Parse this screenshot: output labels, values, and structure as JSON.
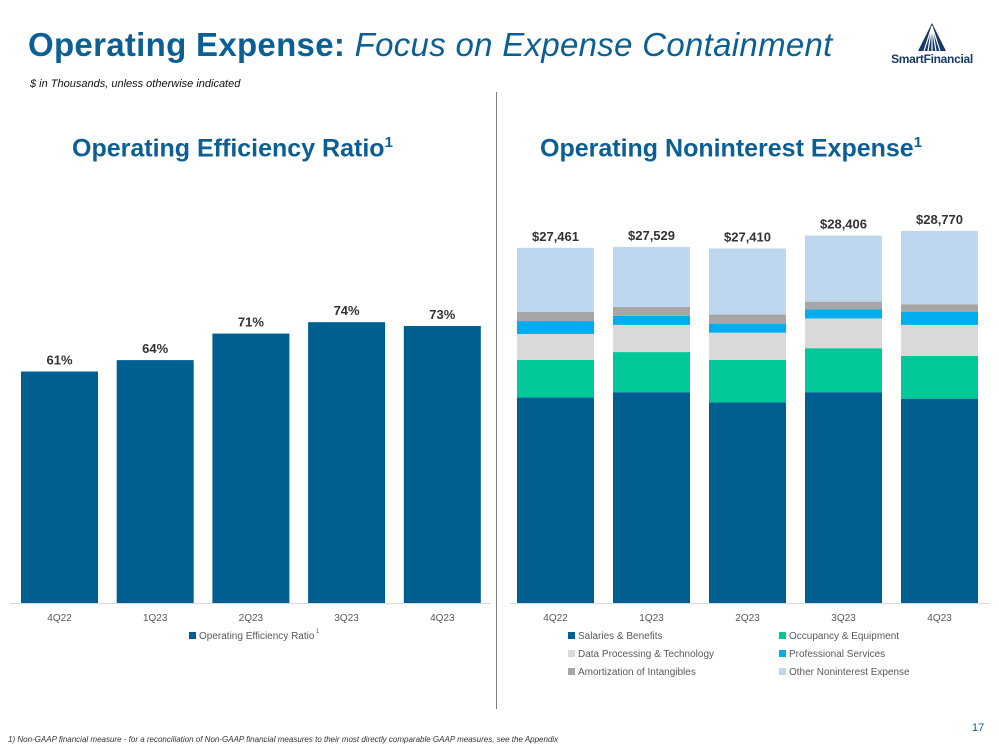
{
  "header": {
    "title_main": "Operating Expense:",
    "title_sub": "Focus on Expense Containment",
    "subtitle": "$ in Thousands, unless otherwise indicated",
    "logo_text": "SmartFinancial"
  },
  "left_panel": {
    "title": "Operating Efficiency Ratio",
    "title_sup": "1"
  },
  "right_panel": {
    "title": "Operating Noninterest Expense",
    "title_sup": "1"
  },
  "footer": {
    "footnote": "1) Non-GAAP financial measure - for a reconciliation of Non-GAAP financial measures to their most directly comparable GAAP measures, see the Appendix",
    "page_number": "17"
  },
  "colors": {
    "brand_blue": "#0b5f94",
    "salaries": "#005f91",
    "occupancy": "#00c896",
    "data_processing": "#d9d9d9",
    "professional": "#00aeef",
    "amortization": "#a6a6a6",
    "other": "#bdd7ee"
  },
  "chart_data": [
    {
      "type": "bar",
      "title": "Operating Efficiency Ratio",
      "categories": [
        "4Q22",
        "1Q23",
        "2Q23",
        "3Q23",
        "4Q23"
      ],
      "values": [
        61,
        64,
        71,
        74,
        73
      ],
      "data_labels": [
        "61%",
        "64%",
        "71%",
        "74%",
        "73%"
      ],
      "legend": [
        "Operating Efficiency Ratio"
      ],
      "legend_sup": "1",
      "legend_position": "bottom",
      "ylim": [
        0,
        100
      ],
      "xlabel": "",
      "ylabel": ""
    },
    {
      "type": "bar",
      "stacked": true,
      "title": "Operating Noninterest Expense",
      "categories": [
        "4Q22",
        "1Q23",
        "2Q23",
        "3Q23",
        "4Q23"
      ],
      "totals": [
        27461,
        27529,
        27410,
        28406,
        28770
      ],
      "total_labels": [
        "$27,461",
        "$27,529",
        "$27,410",
        "$28,406",
        "$28,770"
      ],
      "series": [
        {
          "name": "Salaries & Benefits",
          "values": [
            15900,
            16300,
            15500,
            16300,
            15800
          ]
        },
        {
          "name": "Occupancy & Equipment",
          "values": [
            2900,
            3100,
            3300,
            3400,
            3300
          ]
        },
        {
          "name": "Data Processing & Technology",
          "values": [
            2000,
            2100,
            2100,
            2300,
            2400
          ]
        },
        {
          "name": "Professional Services",
          "values": [
            1000,
            700,
            700,
            700,
            1000
          ]
        },
        {
          "name": "Amortization of Intangibles",
          "values": [
            700,
            700,
            700,
            600,
            600
          ]
        },
        {
          "name": "Other Noninterest Expense",
          "values": [
            4961,
            4629,
            5110,
            5106,
            5670
          ]
        }
      ],
      "legend_position": "bottom",
      "ylim": [
        0,
        28800
      ],
      "xlabel": "",
      "ylabel": ""
    }
  ]
}
